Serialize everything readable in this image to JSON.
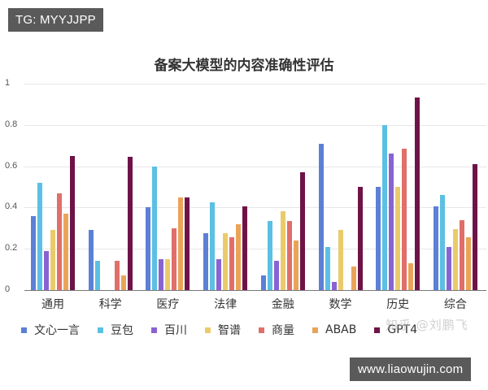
{
  "badges": {
    "top_left": "TG: MYYJJPP",
    "bottom_right": "www.liaowujin.com"
  },
  "watermark": "知乎 @刘鹏飞",
  "chart_data": {
    "type": "bar",
    "title": "备案大模型的内容准确性评估",
    "xlabel": "",
    "ylabel": "",
    "ylim": [
      0,
      1
    ],
    "yticks": [
      "0",
      "0.2",
      "0.4",
      "0.6",
      "0.8",
      "1"
    ],
    "grid": true,
    "legend_position": "bottom",
    "categories": [
      "通用",
      "科学",
      "医疗",
      "法律",
      "金融",
      "数学",
      "历史",
      "综合"
    ],
    "series": [
      {
        "name": "文心一言",
        "color": "#5B80D6",
        "values": [
          0.36,
          0.29,
          0.4,
          0.275,
          0.07,
          0.71,
          0.5,
          0.405
        ]
      },
      {
        "name": "豆包",
        "color": "#5BC0E3",
        "values": [
          0.52,
          0.14,
          0.6,
          0.425,
          0.335,
          0.21,
          0.8,
          0.46
        ]
      },
      {
        "name": "百川",
        "color": "#8A63D2",
        "values": [
          0.19,
          0,
          0.15,
          0.15,
          0.14,
          0.04,
          0.66,
          0.21
        ]
      },
      {
        "name": "智谱",
        "color": "#EACB6B",
        "values": [
          0.29,
          0,
          0.15,
          0.275,
          0.38,
          0.29,
          0.5,
          0.295
        ]
      },
      {
        "name": "商量",
        "color": "#E06F6A",
        "values": [
          0.47,
          0.14,
          0.3,
          0.255,
          0.335,
          0,
          0.685,
          0.34
        ]
      },
      {
        "name": "ABAB",
        "color": "#E9A45A",
        "values": [
          0.37,
          0.07,
          0.45,
          0.32,
          0.24,
          0.115,
          0.13,
          0.255
        ]
      },
      {
        "name": "GPT4",
        "color": "#6E1347",
        "values": [
          0.65,
          0.645,
          0.45,
          0.405,
          0.57,
          0.5,
          0.935,
          0.61
        ]
      }
    ]
  }
}
